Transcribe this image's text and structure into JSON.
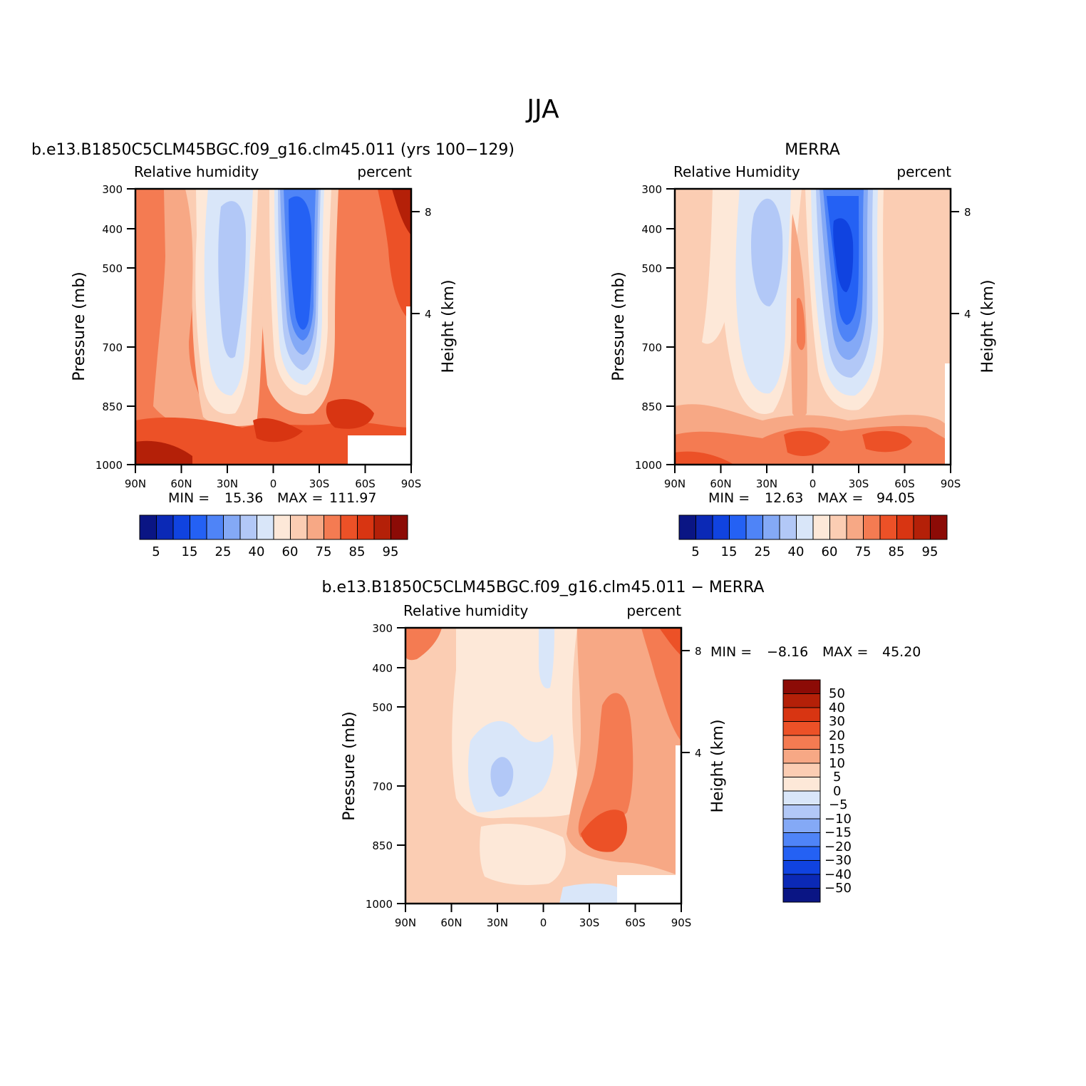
{
  "figure": {
    "title": "JJA"
  },
  "panels": [
    {
      "id": "model",
      "title": "b.e13.B1850C5CLM45BGC.f09_g16.clm45.011 (yrs 100−129)",
      "left_label": "Relative humidity",
      "right_label": "percent",
      "y_label": "Pressure (mb)",
      "y2_label": "Height (km)",
      "stats_min_label": "MIN =",
      "stats_min": "15.36",
      "stats_max_label": "MAX =",
      "stats_max": "111.97"
    },
    {
      "id": "obs",
      "title": "MERRA",
      "left_label": "Relative Humidity",
      "right_label": "percent",
      "y_label": "Pressure (mb)",
      "y2_label": "Height (km)",
      "stats_min_label": "MIN =",
      "stats_min": "12.63",
      "stats_max_label": "MAX =",
      "stats_max": "94.05"
    },
    {
      "id": "diff",
      "title": "b.e13.B1850C5CLM45BGC.f09_g16.clm45.011 − MERRA",
      "left_label": "Relative humidity",
      "right_label": "percent",
      "y_label": "Pressure (mb)",
      "y2_label": "Height (km)",
      "stats_min_label": "MIN =",
      "stats_min": "−8.16",
      "stats_max_label": "MAX =",
      "stats_max": "45.20"
    }
  ],
  "axes": {
    "x_ticks": [
      "90N",
      "60N",
      "30N",
      "0",
      "30S",
      "60S",
      "90S"
    ],
    "x_values": [
      90,
      60,
      30,
      0,
      -30,
      -60,
      -90
    ],
    "y_ticks": [
      "300",
      "400",
      "500",
      "700",
      "850",
      "1000"
    ],
    "y_values": [
      300,
      400,
      500,
      700,
      850,
      1000
    ],
    "y2_ticks": [
      "8",
      "4"
    ],
    "y2_values_km": [
      8,
      4
    ]
  },
  "colorbars": {
    "rh_labels": [
      "5",
      "15",
      "25",
      "40",
      "60",
      "75",
      "85",
      "95"
    ],
    "diff_labels": [
      "50",
      "40",
      "30",
      "20",
      "15",
      "10",
      "5",
      "0",
      "−5",
      "−10",
      "−15",
      "−20",
      "−30",
      "−40",
      "−50"
    ]
  },
  "colors": {
    "palette": [
      "#0a1584",
      "#0b29b6",
      "#1043e0",
      "#2461f4",
      "#4f84f7",
      "#84a9f6",
      "#b2c8f7",
      "#d9e6f9",
      "#fde8d8",
      "#fbcdb3",
      "#f7a885",
      "#f47b52",
      "#ec5127",
      "#d83512",
      "#b42008",
      "#8c0b06"
    ],
    "rh_colors": [
      "#0a1584",
      "#0b29b6",
      "#1043e0",
      "#2461f4",
      "#4f84f7",
      "#84a9f6",
      "#b2c8f7",
      "#d9e6f9",
      "#fde8d8",
      "#fbcdb3",
      "#f7a885",
      "#f47b52",
      "#ec5127",
      "#d83512",
      "#b42008",
      "#8c0b06"
    ],
    "diff_colors": [
      "#8c0b06",
      "#b42008",
      "#d83512",
      "#ec5127",
      "#f47b52",
      "#f7a885",
      "#fbcdb3",
      "#fde8d8",
      "#d9e6f9",
      "#b2c8f7",
      "#84a9f6",
      "#4f84f7",
      "#2461f4",
      "#1043e0",
      "#0b29b6",
      "#0a1584"
    ]
  },
  "chart_data": [
    {
      "type": "heatmap",
      "title": "b.e13.B1850C5CLM45BGC.f09_g16.clm45.011 (yrs 100−129)",
      "field": "Relative humidity",
      "units": "percent",
      "x": [
        90,
        60,
        30,
        0,
        -30,
        -60,
        -90
      ],
      "y": [
        300,
        400,
        500,
        700,
        850,
        1000
      ],
      "values": [
        [
          70,
          60,
          35,
          60,
          15,
          70,
          99
        ],
        [
          72,
          62,
          35,
          58,
          20,
          75,
          95
        ],
        [
          68,
          60,
          40,
          60,
          22,
          78,
          90
        ],
        [
          75,
          68,
          45,
          72,
          35,
          85,
          95
        ],
        [
          85,
          75,
          65,
          85,
          70,
          88,
          100
        ],
        [
          90,
          85,
          80,
          90,
          85,
          85,
          100
        ]
      ],
      "min": 15.36,
      "max": 111.97,
      "ylim": [
        1000,
        300
      ],
      "xlim": [
        90,
        -90
      ]
    },
    {
      "type": "heatmap",
      "title": "MERRA",
      "field": "Relative Humidity",
      "units": "percent",
      "x": [
        90,
        60,
        30,
        0,
        -30,
        -60,
        -90
      ],
      "y": [
        300,
        400,
        500,
        700,
        850,
        1000
      ],
      "values": [
        [
          60,
          60,
          30,
          55,
          12,
          60,
          65
        ],
        [
          60,
          58,
          25,
          55,
          12,
          62,
          65
        ],
        [
          62,
          55,
          28,
          65,
          15,
          65,
          65
        ],
        [
          68,
          62,
          38,
          70,
          30,
          65,
          70
        ],
        [
          75,
          70,
          55,
          75,
          55,
          75,
          60
        ],
        [
          85,
          80,
          75,
          90,
          85,
          88,
          90
        ]
      ],
      "min": 12.63,
      "max": 94.05,
      "ylim": [
        1000,
        300
      ],
      "xlim": [
        90,
        -90
      ]
    },
    {
      "type": "heatmap",
      "title": "b.e13.B1850C5CLM45BGC.f09_g16.clm45.011 − MERRA",
      "field": "Relative humidity",
      "units": "percent",
      "x": [
        90,
        60,
        30,
        0,
        -30,
        -60,
        -90
      ],
      "y": [
        300,
        400,
        500,
        700,
        850,
        1000
      ],
      "values": [
        [
          20,
          10,
          5,
          0,
          10,
          20,
          30
        ],
        [
          10,
          8,
          5,
          3,
          15,
          20,
          25
        ],
        [
          8,
          5,
          3,
          2,
          15,
          20,
          20
        ],
        [
          5,
          5,
          -5,
          2,
          20,
          20,
          25
        ],
        [
          5,
          5,
          2,
          5,
          30,
          15,
          30
        ],
        [
          5,
          5,
          2,
          5,
          -2,
          0,
          0
        ]
      ],
      "min": -8.16,
      "max": 45.2,
      "ylim": [
        1000,
        300
      ],
      "xlim": [
        90,
        -90
      ]
    }
  ]
}
